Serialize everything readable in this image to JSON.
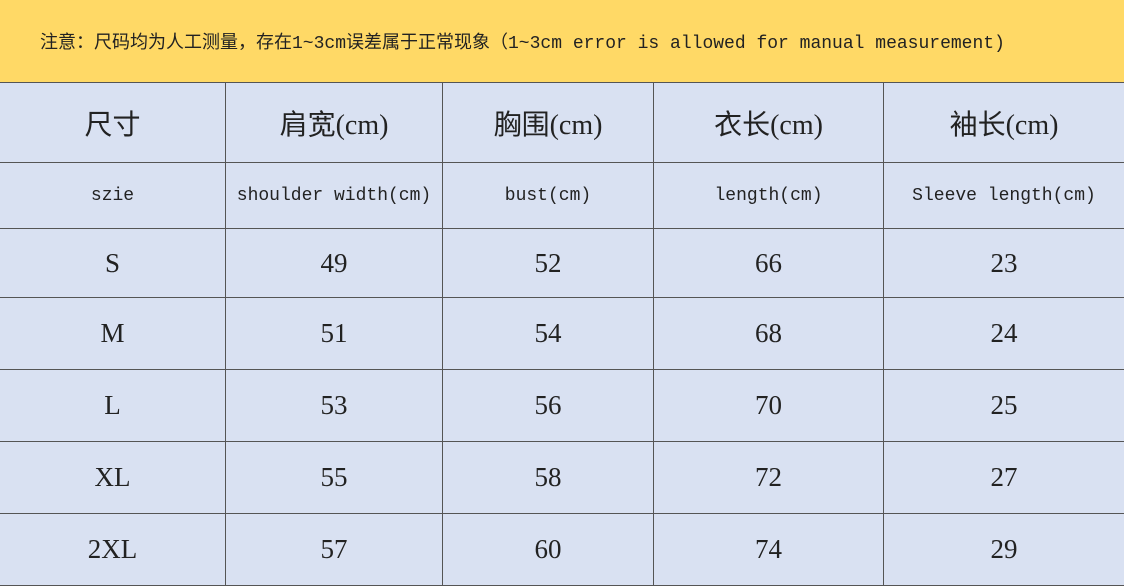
{
  "notice": "注意：尺码均为人工测量，存在1~3cm误差属于正常现象（1~3cm error is allowed for manual measurement)",
  "table": {
    "header": [
      "尺寸",
      "肩宽(cm)",
      "胸围(cm)",
      "衣长(cm)",
      "袖长(cm)"
    ],
    "subheader": [
      "szie",
      "shoulder width(cm)",
      "bust(cm)",
      "length(cm)",
      "Sleeve length(cm)"
    ],
    "rows": [
      [
        "S",
        49,
        52,
        66,
        23
      ],
      [
        "M",
        51,
        54,
        68,
        24
      ],
      [
        "L",
        53,
        56,
        70,
        25
      ],
      [
        "XL",
        55,
        58,
        72,
        27
      ],
      [
        "2XL",
        57,
        60,
        74,
        29
      ]
    ]
  }
}
